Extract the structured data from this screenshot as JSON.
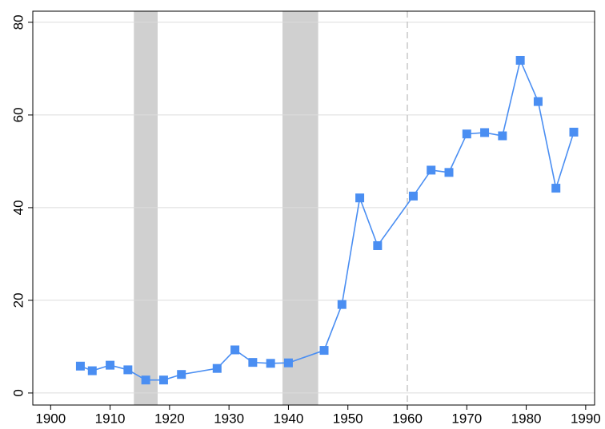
{
  "chart_data": {
    "type": "line",
    "x": [
      1905,
      1907,
      1910,
      1913,
      1916,
      1919,
      1922,
      1928,
      1931,
      1934,
      1937,
      1940,
      1946,
      1949,
      1952,
      1955,
      1961,
      1964,
      1967,
      1970,
      1973,
      1976,
      1979,
      1982,
      1985,
      1988
    ],
    "series": [
      {
        "color": "#4a8ef2",
        "values": [
          5.8,
          4.8,
          6.0,
          5.0,
          2.8,
          2.8,
          4.0,
          5.3,
          9.3,
          6.6,
          6.4,
          6.5,
          9.2,
          19.1,
          42.1,
          31.8,
          42.5,
          48.1,
          47.6,
          55.9,
          56.2,
          55.5,
          71.8,
          62.9,
          44.2,
          56.3
        ]
      }
    ],
    "xlim": [
      1897,
      1991.5
    ],
    "xticks": [
      1900,
      1910,
      1920,
      1930,
      1940,
      1950,
      1960,
      1970,
      1980,
      1990
    ],
    "ylim": [
      -2.6,
      82.4
    ],
    "yticks": [
      0,
      20,
      40,
      60,
      80
    ],
    "grid": true,
    "shaded_periods": [
      [
        1914,
        1918
      ],
      [
        1939,
        1945
      ]
    ],
    "vline": 1960
  }
}
